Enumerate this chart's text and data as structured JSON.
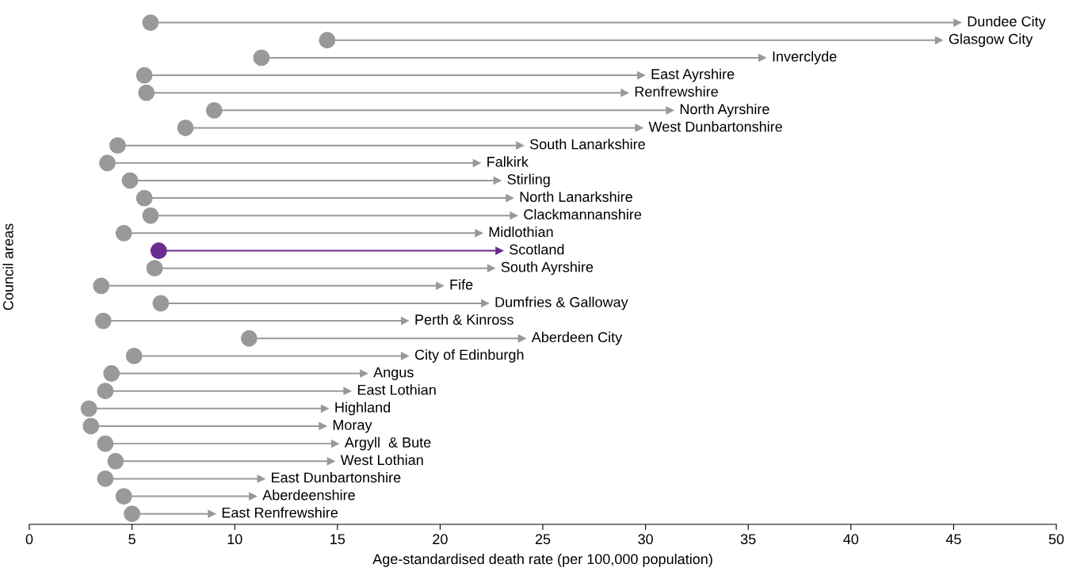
{
  "chart_data": {
    "type": "bar",
    "orientation": "horizontal",
    "tick_labels": "x",
    "xlabel": "Age-standardised death rate (per 100,000 population)",
    "ylabel": "Council areas",
    "xlim": [
      0,
      50
    ],
    "xticks": [
      0,
      5,
      10,
      15,
      20,
      25,
      30,
      35,
      40,
      45,
      50
    ],
    "categories": [
      "Dundee City",
      "Glasgow City",
      "Inverclyde",
      "East Ayrshire",
      "Renfrewshire",
      "North Ayrshire",
      "West Dunbartonshire",
      "South Lanarkshire",
      "Falkirk",
      "Stirling",
      "North Lanarkshire",
      "Clackmannanshire",
      "Midlothian",
      "Scotland",
      "South Ayrshire",
      "Fife",
      "Dumfries & Galloway",
      "Perth & Kinross",
      "Aberdeen City",
      "City of Edinburgh",
      "Angus",
      "East Lothian",
      "Highland",
      "Moray",
      "Argyll  & Bute",
      "West Lothian",
      "East Dunbartonshire",
      "Aberdeenshire",
      "East Renfrewshire"
    ],
    "series": [
      {
        "base": [
          5.9,
          14.5,
          11.3,
          5.6,
          5.7,
          9.0,
          7.6,
          4.3,
          3.8,
          4.9,
          5.6,
          5.9,
          4.6,
          6.3,
          6.1,
          3.5,
          6.4,
          3.6,
          10.7,
          5.1,
          4.0,
          3.7,
          2.9,
          3.0,
          3.7,
          4.2,
          3.7,
          4.6,
          5.0
        ],
        "values": [
          39.3,
          29.8,
          24.4,
          24.2,
          23.3,
          22.2,
          22.1,
          19.6,
          18.0,
          17.9,
          17.8,
          17.7,
          17.3,
          16.6,
          16.4,
          16.5,
          15.8,
          14.7,
          13.3,
          13.2,
          12.3,
          11.8,
          11.5,
          11.3,
          11.2,
          10.5,
          7.6,
          6.3,
          3.9
        ],
        "colors": [
          "#999999",
          "#999999",
          "#999999",
          "#999999",
          "#999999",
          "#999999",
          "#999999",
          "#999999",
          "#999999",
          "#999999",
          "#999999",
          "#999999",
          "#999999",
          "#6a2c8e",
          "#999999",
          "#999999",
          "#999999",
          "#999999",
          "#999999",
          "#999999",
          "#999999",
          "#999999",
          "#999999",
          "#999999",
          "#999999",
          "#999999",
          "#999999",
          "#999999",
          "#999999"
        ]
      },
      {
        "type": "scatter",
        "marker": "circle",
        "values": [
          5.9,
          14.5,
          11.3,
          5.6,
          5.7,
          9.0,
          7.6,
          4.3,
          3.8,
          4.9,
          5.6,
          5.9,
          4.6,
          6.3,
          6.1,
          3.5,
          6.4,
          3.6,
          10.7,
          5.1,
          4.0,
          3.7,
          2.9,
          3.0,
          3.7,
          4.2,
          3.7,
          4.6,
          5.0
        ],
        "colors": [
          "#999999",
          "#999999",
          "#999999",
          "#999999",
          "#999999",
          "#999999",
          "#999999",
          "#999999",
          "#999999",
          "#999999",
          "#999999",
          "#999999",
          "#999999",
          "#6a2c8e",
          "#999999",
          "#999999",
          "#999999",
          "#999999",
          "#999999",
          "#999999",
          "#999999",
          "#999999",
          "#999999",
          "#999999",
          "#999999",
          "#999999",
          "#999999",
          "#999999",
          "#999999"
        ]
      }
    ]
  }
}
